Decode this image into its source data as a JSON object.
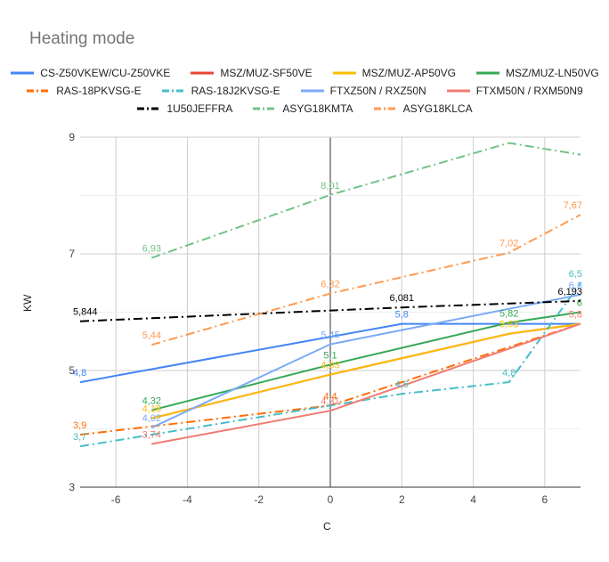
{
  "chart_data": {
    "type": "line",
    "title": "Heating mode",
    "xlabel": "C",
    "ylabel": "KW",
    "xlim": [
      -7,
      7
    ],
    "ylim": [
      3,
      9
    ],
    "xticks": [
      -6,
      -4,
      -2,
      0,
      2,
      4,
      6
    ],
    "xtick_labels": [
      "-6",
      "-4",
      "-2",
      "0",
      "2",
      "4",
      "6"
    ],
    "yticks": [
      3,
      5,
      7,
      9
    ],
    "ytick_labels": [
      "3",
      "5",
      "7",
      "9"
    ],
    "grid": true,
    "legend_position": "top",
    "series": [
      {
        "name": "CS-Z50VKEW/CU-Z50VKE",
        "color": "#4285f4",
        "dash": "solid",
        "x": [
          -7,
          2,
          7
        ],
        "y": [
          4.8,
          5.8,
          5.8
        ],
        "labels": [
          {
            "x": -7,
            "y": 4.8,
            "text": "4,8"
          },
          {
            "x": 2,
            "y": 5.8,
            "text": "5,8"
          }
        ]
      },
      {
        "name": "MSZ/MUZ-SF50VE",
        "color": "#ea4335",
        "dash": "solid",
        "x": [
          -5,
          0,
          5,
          7
        ],
        "y": [
          4.18,
          4.93,
          5.63,
          5.8
        ],
        "labels": []
      },
      {
        "name": "MSZ/MUZ-AP50VG",
        "color": "#fbbc04",
        "dash": "solid",
        "x": [
          -5,
          0,
          5,
          7
        ],
        "y": [
          4.18,
          4.93,
          5.63,
          5.8
        ],
        "labels": [
          {
            "x": -5,
            "y": 4.18,
            "text": "4,18"
          },
          {
            "x": 0,
            "y": 4.93,
            "text": "4,93"
          },
          {
            "x": 5,
            "y": 5.63,
            "text": "5,63"
          }
        ]
      },
      {
        "name": "MSZ/MUZ-LN50VG",
        "color": "#34a853",
        "dash": "solid",
        "x": [
          -5,
          0,
          5,
          7
        ],
        "y": [
          4.32,
          5.1,
          5.82,
          6.0
        ],
        "labels": [
          {
            "x": -5,
            "y": 4.32,
            "text": "4,32"
          },
          {
            "x": 0,
            "y": 5.1,
            "text": "5,1"
          },
          {
            "x": 5,
            "y": 5.82,
            "text": "5,82"
          },
          {
            "x": 7,
            "y": 6.0,
            "text": "6"
          }
        ]
      },
      {
        "name": "RAS-18PKVSG-E",
        "color": "#ff6d01",
        "dash": "dashdot",
        "x": [
          -7,
          0,
          7
        ],
        "y": [
          3.9,
          4.4,
          5.8
        ],
        "labels": [
          {
            "x": -7,
            "y": 3.9,
            "text": "3,9"
          },
          {
            "x": 0,
            "y": 4.4,
            "text": "4,4"
          }
        ]
      },
      {
        "name": "RAS-18J2KVSG-E",
        "color": "#46bdc6",
        "dash": "dashdot",
        "x": [
          -7,
          2,
          5,
          7
        ],
        "y": [
          3.7,
          4.6,
          4.8,
          6.5
        ],
        "labels": [
          {
            "x": -7,
            "y": 3.7,
            "text": "3,7"
          },
          {
            "x": 2,
            "y": 4.6,
            "text": "4,6"
          },
          {
            "x": 5,
            "y": 4.8,
            "text": "4,8"
          },
          {
            "x": 7,
            "y": 6.5,
            "text": "6,5"
          }
        ]
      },
      {
        "name": "FTXZ50N / RXZ50N",
        "color": "#7baaf7",
        "dash": "solid",
        "x": [
          -5,
          0,
          7
        ],
        "y": [
          4.02,
          5.45,
          6.3
        ],
        "labels": [
          {
            "x": -5,
            "y": 4.02,
            "text": "4,02"
          },
          {
            "x": 0,
            "y": 5.45,
            "text": "5,45"
          },
          {
            "x": 7,
            "y": 6.3,
            "text": "6,3"
          }
        ]
      },
      {
        "name": "FTXM50N / RXM50N9",
        "color": "#f07b72",
        "dash": "solid",
        "x": [
          -5,
          0,
          7
        ],
        "y": [
          3.74,
          4.31,
          5.8
        ],
        "labels": [
          {
            "x": -5,
            "y": 3.74,
            "text": "3,74"
          },
          {
            "x": 0,
            "y": 4.31,
            "text": "4,31"
          },
          {
            "x": 7,
            "y": 5.8,
            "text": "5,8"
          }
        ]
      },
      {
        "name": "1U50JEFFRA",
        "color": "#000000",
        "dash": "dashdot",
        "x": [
          -7,
          2,
          7
        ],
        "y": [
          5.844,
          6.081,
          6.193
        ],
        "labels": [
          {
            "x": -7,
            "y": 5.844,
            "text": "5,844"
          },
          {
            "x": 2,
            "y": 6.081,
            "text": "6,081"
          },
          {
            "x": 7,
            "y": 6.193,
            "text": "6,193"
          }
        ]
      },
      {
        "name": "ASYG18KMTA",
        "color": "#71c287",
        "dash": "dashdot",
        "x": [
          -5,
          0,
          5,
          7
        ],
        "y": [
          6.93,
          8.01,
          8.9,
          8.7
        ],
        "labels": [
          {
            "x": -5,
            "y": 6.93,
            "text": "6,93"
          },
          {
            "x": 0,
            "y": 8.01,
            "text": "8,01"
          }
        ]
      },
      {
        "name": "ASYG18KLCA",
        "color": "#ff994d",
        "dash": "dashdot",
        "x": [
          -5,
          0,
          5,
          7
        ],
        "y": [
          5.44,
          6.32,
          7.02,
          7.67
        ],
        "labels": [
          {
            "x": -5,
            "y": 5.44,
            "text": "5,44"
          },
          {
            "x": 0,
            "y": 6.32,
            "text": "6,32"
          },
          {
            "x": 5,
            "y": 7.02,
            "text": "7,02"
          },
          {
            "x": 7,
            "y": 7.67,
            "text": "7,67"
          }
        ]
      }
    ]
  }
}
